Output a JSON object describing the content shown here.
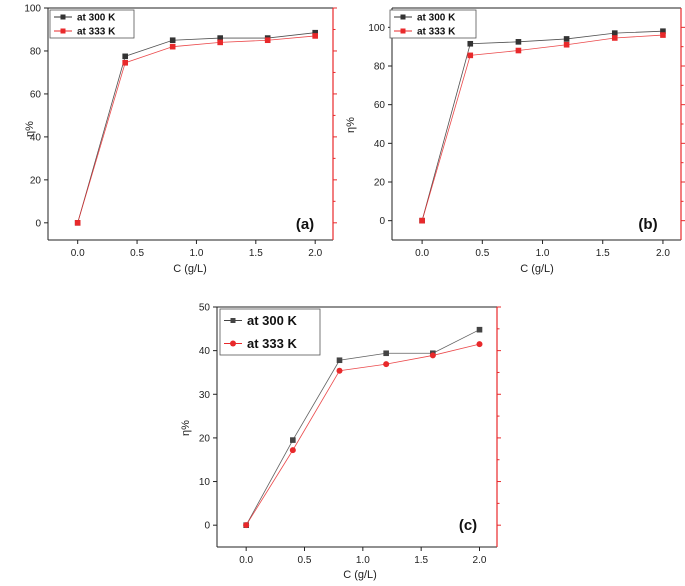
{
  "chart_data": [
    {
      "type": "line",
      "panel_label": "(a)",
      "xlabel": "C (g/L)",
      "ylabel": "η%",
      "xlim": [
        -0.25,
        2.15
      ],
      "ylim": [
        -8,
        100
      ],
      "xticks": [
        0.0,
        0.5,
        1.0,
        1.5,
        2.0
      ],
      "yticks": [
        0,
        20,
        40,
        60,
        80,
        100
      ],
      "x": [
        0.0,
        0.4,
        0.8,
        1.2,
        1.6,
        2.0
      ],
      "legend_position": "top-left",
      "series": [
        {
          "name": "at 300 K",
          "marker": "square",
          "color": "#333333",
          "values": [
            0,
            77.5,
            85,
            86,
            86,
            88.5
          ]
        },
        {
          "name": "at 333 K",
          "marker": "square",
          "color": "#e8292b",
          "values": [
            0,
            74.5,
            82,
            84,
            85,
            87
          ]
        }
      ]
    },
    {
      "type": "line",
      "panel_label": "(b)",
      "xlabel": "C (g/L)",
      "ylabel": "η%",
      "xlim": [
        -0.25,
        2.15
      ],
      "ylim": [
        -10,
        110
      ],
      "xticks": [
        0.0,
        0.5,
        1.0,
        1.5,
        2.0
      ],
      "yticks": [
        0,
        20,
        40,
        60,
        80,
        100
      ],
      "x": [
        0.0,
        0.4,
        0.8,
        1.2,
        1.6,
        2.0
      ],
      "legend_position": "top-left",
      "series": [
        {
          "name": "at 300 K",
          "marker": "square",
          "color": "#333333",
          "values": [
            0,
            91.5,
            92.5,
            94,
            97,
            98
          ]
        },
        {
          "name": "at 333 K",
          "marker": "square",
          "color": "#e8292b",
          "values": [
            0,
            85.5,
            88,
            91,
            94.5,
            96
          ]
        }
      ]
    },
    {
      "type": "line",
      "panel_label": "(c)",
      "xlabel": "C (g/L)",
      "ylabel": "η%",
      "xlim": [
        -0.25,
        2.15
      ],
      "ylim": [
        -5,
        50
      ],
      "xticks": [
        0.0,
        0.5,
        1.0,
        1.5,
        2.0
      ],
      "yticks": [
        0,
        10,
        20,
        30,
        40,
        50
      ],
      "x": [
        0.0,
        0.4,
        0.8,
        1.2,
        1.6,
        2.0
      ],
      "legend_position": "top-left",
      "series": [
        {
          "name": "at 300 K",
          "marker": "square",
          "color": "#444444",
          "values": [
            0,
            19.5,
            37.8,
            39.4,
            39.4,
            44.8
          ]
        },
        {
          "name": "at 333 K",
          "marker": "circle",
          "color": "#e8292b",
          "values": [
            0,
            17.2,
            35.4,
            36.9,
            38.9,
            41.5
          ]
        }
      ]
    }
  ]
}
